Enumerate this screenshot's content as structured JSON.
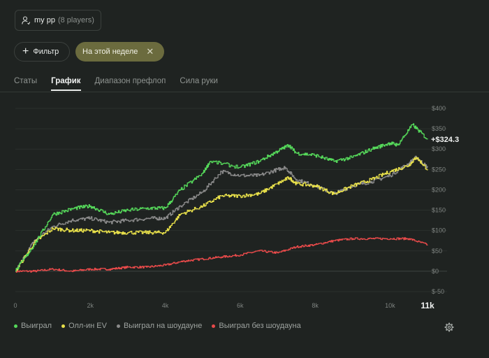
{
  "player": {
    "name": "my pp",
    "count": "(8 players)",
    "icon": "user-icon"
  },
  "filter": {
    "label": "Фильтр",
    "icon": "plus-icon"
  },
  "chip": {
    "label": "На этой неделе",
    "icon": "close-icon"
  },
  "tabs": [
    {
      "label": "Статы",
      "active": false
    },
    {
      "label": "График",
      "active": true
    },
    {
      "label": "Диапазон префлоп",
      "active": false
    },
    {
      "label": "Сила руки",
      "active": false
    }
  ],
  "legend": [
    {
      "label": "Выиграл",
      "color": "#55d85a"
    },
    {
      "label": "Олл-ин EV",
      "color": "#e8e04a"
    },
    {
      "label": "Выиграл на шоудауне",
      "color": "#8a8a8a"
    },
    {
      "label": "Выиграл без шоудауна",
      "color": "#e84a4a"
    }
  ],
  "settings_icon": "gear-icon",
  "chart_data": {
    "type": "line",
    "xlabel": "",
    "ylabel": "",
    "xlim": [
      0,
      11000
    ],
    "ylim": [
      -50,
      400
    ],
    "x_ticks": [
      "0",
      "2k",
      "4k",
      "6k",
      "8k",
      "10k"
    ],
    "x_end_label": "11k",
    "y_ticks": [
      "$400",
      "$350",
      "$300",
      "$250",
      "$200",
      "$150",
      "$100",
      "$50",
      "$0",
      "$-50"
    ],
    "y_tick_values": [
      400,
      350,
      300,
      250,
      200,
      150,
      100,
      50,
      0,
      -50
    ],
    "end_label": "+$324.3",
    "grid": true,
    "legend_position": "bottom-left",
    "series": [
      {
        "name": "Выиграл",
        "color": "#55d85a",
        "x": [
          0,
          500,
          1000,
          1600,
          2000,
          2500,
          3000,
          3600,
          4000,
          4400,
          5000,
          5200,
          6000,
          6500,
          7000,
          7300,
          7500,
          8000,
          8500,
          9000,
          9500,
          10000,
          10200,
          10600,
          11000
        ],
        "y": [
          0,
          65,
          140,
          155,
          160,
          140,
          150,
          155,
          155,
          200,
          240,
          270,
          255,
          270,
          295,
          310,
          290,
          285,
          270,
          280,
          300,
          315,
          310,
          360,
          324
        ]
      },
      {
        "name": "Олл-ин EV",
        "color": "#e8e04a",
        "x": [
          0,
          500,
          1000,
          1500,
          2000,
          2500,
          3000,
          3600,
          4000,
          4400,
          5000,
          5500,
          6000,
          6500,
          7000,
          7300,
          7500,
          8000,
          8500,
          9000,
          9500,
          10000,
          10500,
          10700,
          11000
        ],
        "y": [
          0,
          70,
          105,
          100,
          100,
          95,
          95,
          95,
          95,
          140,
          160,
          185,
          185,
          190,
          215,
          230,
          215,
          210,
          190,
          210,
          225,
          245,
          260,
          280,
          250
        ]
      },
      {
        "name": "Выиграл на шоудауне",
        "color": "#8a8a8a",
        "x": [
          0,
          500,
          1000,
          1500,
          2000,
          2500,
          3000,
          3600,
          4000,
          4400,
          5000,
          5500,
          6000,
          6500,
          7000,
          7200,
          7500,
          8000,
          8500,
          9000,
          9500,
          10000,
          10500,
          10700,
          11000
        ],
        "y": [
          0,
          75,
          110,
          125,
          130,
          120,
          125,
          130,
          130,
          160,
          195,
          245,
          235,
          235,
          250,
          255,
          225,
          210,
          190,
          210,
          220,
          235,
          265,
          280,
          255
        ]
      },
      {
        "name": "Выиграл без шоудауна",
        "color": "#e84a4a",
        "x": [
          0,
          500,
          1000,
          1500,
          2000,
          2500,
          3000,
          3500,
          4000,
          4500,
          5000,
          5500,
          6000,
          6500,
          7000,
          7500,
          8000,
          8500,
          9000,
          9500,
          10000,
          10500,
          11000
        ],
        "y": [
          0,
          0,
          5,
          0,
          5,
          5,
          10,
          10,
          15,
          25,
          30,
          35,
          40,
          50,
          45,
          60,
          65,
          75,
          80,
          80,
          80,
          80,
          65
        ]
      }
    ]
  }
}
